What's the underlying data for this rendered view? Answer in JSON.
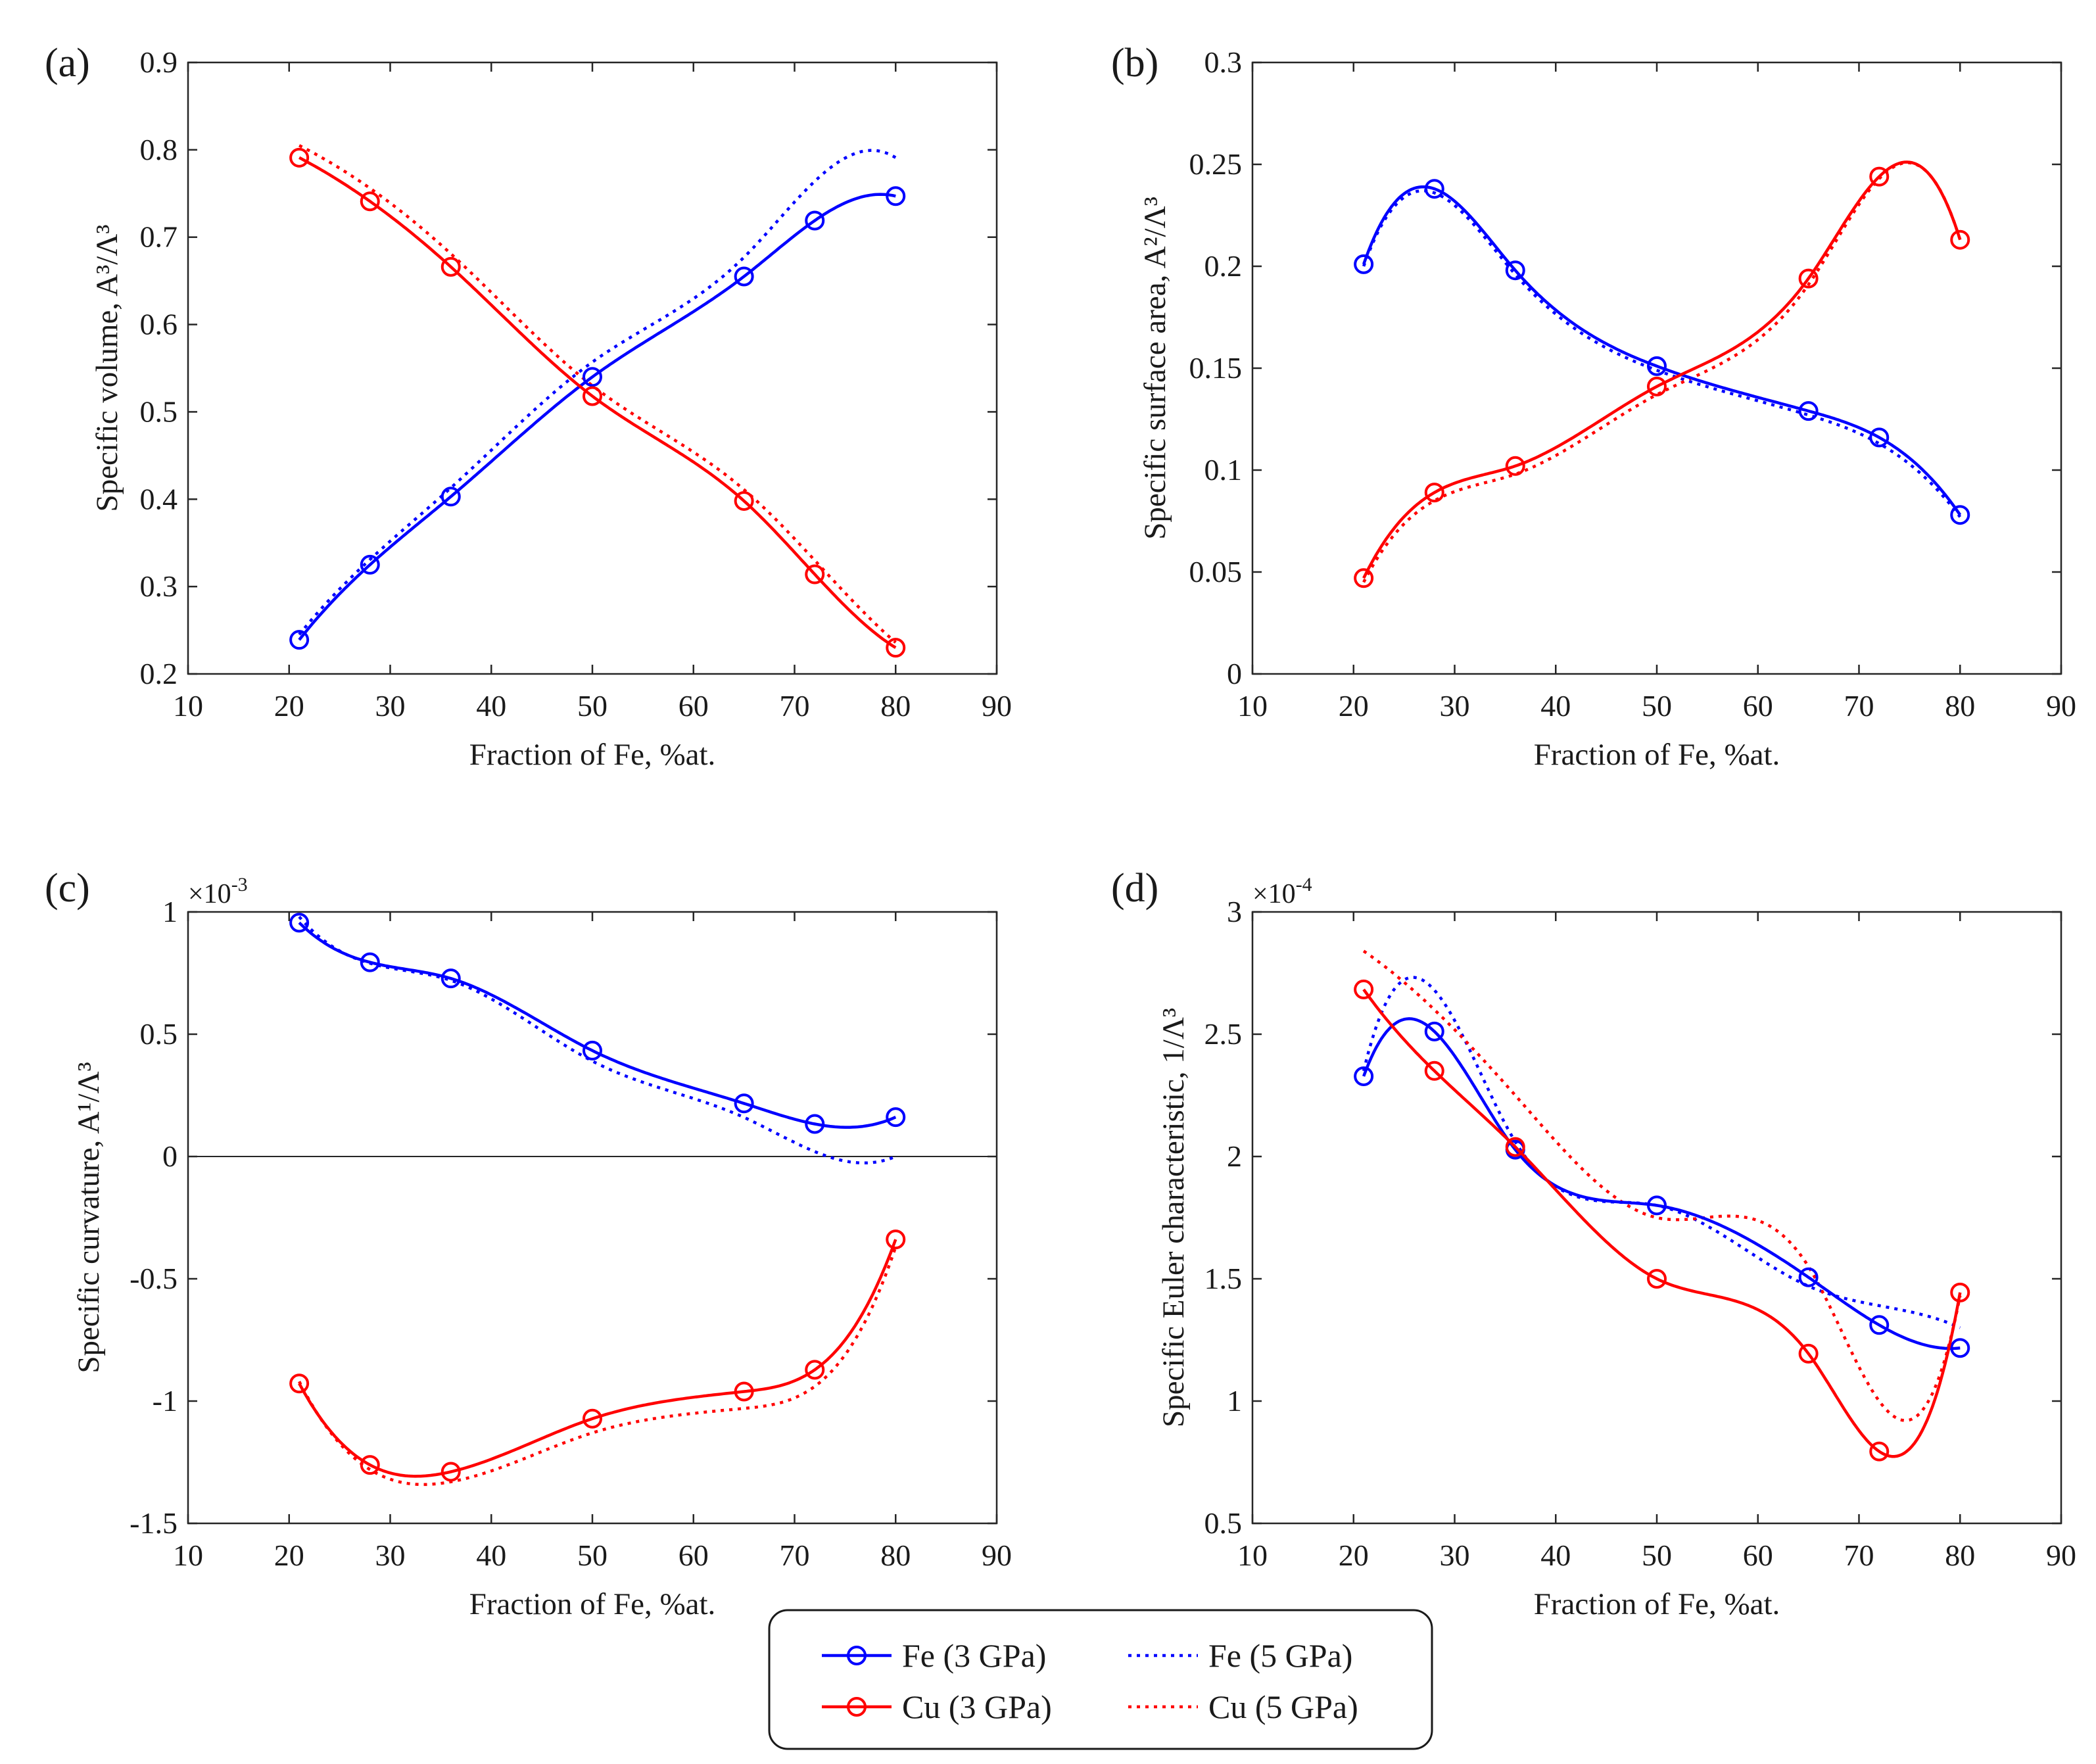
{
  "chart_data": [
    {
      "type": "line",
      "panel_label": "(a)",
      "xlabel": "Fraction of Fe, %at.",
      "ylabel": "Specific volume, A³/Λ³",
      "xlim": [
        10,
        90
      ],
      "ylim": [
        0.2,
        0.9
      ],
      "xticks": [
        10,
        20,
        30,
        40,
        50,
        60,
        70,
        80,
        90
      ],
      "xtick_labels": [
        "10",
        "20",
        "30",
        "40",
        "50",
        "60",
        "70",
        "80",
        "90"
      ],
      "yticks": [
        0.2,
        0.3,
        0.4,
        0.5,
        0.6,
        0.7,
        0.8,
        0.9
      ],
      "ytick_labels": [
        "0.2",
        "0.3",
        "0.4",
        "0.5",
        "0.6",
        "0.7",
        "0.8",
        "0.9"
      ],
      "grid": false,
      "zero_line": false,
      "series": [
        {
          "entry": 0,
          "x": [
            21,
            28,
            36,
            50,
            65,
            72,
            80
          ],
          "y": [
            0.239,
            0.325,
            0.403,
            0.54,
            0.655,
            0.719,
            0.747
          ]
        },
        {
          "entry": 1,
          "x": [
            21,
            28,
            36,
            50,
            65,
            72,
            80
          ],
          "y": [
            0.245,
            0.331,
            0.413,
            0.557,
            0.677,
            0.764,
            0.791
          ]
        },
        {
          "entry": 2,
          "x": [
            21,
            28,
            36,
            50,
            65,
            72,
            80
          ],
          "y": [
            0.791,
            0.741,
            0.666,
            0.518,
            0.398,
            0.314,
            0.23
          ]
        },
        {
          "entry": 3,
          "x": [
            21,
            28,
            36,
            50,
            65,
            72,
            80
          ],
          "y": [
            0.805,
            0.756,
            0.681,
            0.53,
            0.411,
            0.33,
            0.236
          ]
        }
      ]
    },
    {
      "type": "line",
      "panel_label": "(b)",
      "xlabel": "Fraction of Fe, %at.",
      "ylabel": "Specific surface area, A²/Λ³",
      "xlim": [
        10,
        90
      ],
      "ylim": [
        0,
        0.3
      ],
      "xticks": [
        10,
        20,
        30,
        40,
        50,
        60,
        70,
        80,
        90
      ],
      "xtick_labels": [
        "10",
        "20",
        "30",
        "40",
        "50",
        "60",
        "70",
        "80",
        "90"
      ],
      "yticks": [
        0,
        0.05,
        0.1,
        0.15,
        0.2,
        0.25,
        0.3
      ],
      "ytick_labels": [
        "0",
        "0.05",
        "0.1",
        "0.15",
        "0.2",
        "0.25",
        "0.3"
      ],
      "grid": false,
      "zero_line": false,
      "series": [
        {
          "entry": 0,
          "x": [
            21,
            28,
            36,
            50,
            65,
            72,
            80
          ],
          "y": [
            0.201,
            0.238,
            0.198,
            0.151,
            0.129,
            0.116,
            0.078
          ]
        },
        {
          "entry": 1,
          "x": [
            21,
            28,
            36,
            50,
            65,
            72,
            80
          ],
          "y": [
            0.2,
            0.236,
            0.196,
            0.149,
            0.127,
            0.113,
            0.077
          ]
        },
        {
          "entry": 2,
          "x": [
            21,
            28,
            36,
            50,
            65,
            72,
            80
          ],
          "y": [
            0.047,
            0.089,
            0.102,
            0.141,
            0.194,
            0.244,
            0.213
          ]
        },
        {
          "entry": 3,
          "x": [
            21,
            28,
            36,
            50,
            65,
            72,
            80
          ],
          "y": [
            0.045,
            0.085,
            0.098,
            0.137,
            0.191,
            0.243,
            0.213
          ]
        }
      ]
    },
    {
      "type": "line",
      "panel_label": "(c)",
      "xlabel": "Fraction of Fe, %at.",
      "ylabel": "Specific curvature, A¹/Λ³",
      "y_multiplier": {
        "base": "×10",
        "exponent": "-3"
      },
      "xlim": [
        10,
        90
      ],
      "ylim": [
        -1.5,
        1
      ],
      "xticks": [
        10,
        20,
        30,
        40,
        50,
        60,
        70,
        80,
        90
      ],
      "xtick_labels": [
        "10",
        "20",
        "30",
        "40",
        "50",
        "60",
        "70",
        "80",
        "90"
      ],
      "yticks": [
        -1.5,
        -1,
        -0.5,
        0,
        0.5,
        1
      ],
      "ytick_labels": [
        "-1.5",
        "-1",
        "-0.5",
        "0",
        "0.5",
        "1"
      ],
      "grid": false,
      "zero_line": true,
      "series": [
        {
          "entry": 0,
          "x": [
            21,
            28,
            36,
            50,
            65,
            72,
            80
          ],
          "y": [
            0.956,
            0.794,
            0.728,
            0.433,
            0.217,
            0.133,
            0.161
          ]
        },
        {
          "entry": 1,
          "x": [
            21,
            28,
            36,
            50,
            65,
            72,
            80
          ],
          "y": [
            0.98,
            0.79,
            0.72,
            0.39,
            0.16,
            0.02,
            0.0
          ]
        },
        {
          "entry": 2,
          "x": [
            21,
            28,
            36,
            50,
            65,
            72,
            80
          ],
          "y": [
            -0.928,
            -1.261,
            -1.289,
            -1.072,
            -0.961,
            -0.872,
            -0.339
          ]
        },
        {
          "entry": 3,
          "x": [
            21,
            28,
            36,
            50,
            65,
            72,
            80
          ],
          "y": [
            -0.92,
            -1.28,
            -1.33,
            -1.13,
            -1.03,
            -0.94,
            -0.37
          ]
        }
      ]
    },
    {
      "type": "line",
      "panel_label": "(d)",
      "xlabel": "Fraction of Fe, %at.",
      "ylabel": "Specific Euler characteristic, 1/Λ³",
      "y_multiplier": {
        "base": "×10",
        "exponent": "-4"
      },
      "xlim": [
        10,
        90
      ],
      "ylim": [
        0.5,
        3
      ],
      "xticks": [
        10,
        20,
        30,
        40,
        50,
        60,
        70,
        80,
        90
      ],
      "xtick_labels": [
        "10",
        "20",
        "30",
        "40",
        "50",
        "60",
        "70",
        "80",
        "90"
      ],
      "yticks": [
        0.5,
        1,
        1.5,
        2,
        2.5,
        3
      ],
      "ytick_labels": [
        "0.5",
        "1",
        "1.5",
        "2",
        "2.5",
        "3"
      ],
      "grid": false,
      "zero_line": false,
      "series": [
        {
          "entry": 0,
          "x": [
            21,
            28,
            36,
            50,
            65,
            72,
            80
          ],
          "y": [
            2.328,
            2.511,
            2.028,
            1.8,
            1.506,
            1.311,
            1.217
          ]
        },
        {
          "entry": 1,
          "x": [
            21,
            28,
            36,
            50,
            65,
            72,
            80
          ],
          "y": [
            2.35,
            2.68,
            2.06,
            1.8,
            1.47,
            1.39,
            1.3
          ]
        },
        {
          "entry": 2,
          "x": [
            21,
            28,
            36,
            50,
            65,
            72,
            80
          ],
          "y": [
            2.683,
            2.35,
            2.039,
            1.5,
            1.194,
            0.794,
            1.444
          ]
        },
        {
          "entry": 3,
          "x": [
            21,
            28,
            36,
            50,
            65,
            72,
            80
          ],
          "y": [
            2.84,
            2.6,
            2.25,
            1.75,
            1.55,
            1.0,
            1.43
          ]
        }
      ]
    }
  ],
  "legend": {
    "position": "bottom-center",
    "columns": 2,
    "entries": [
      {
        "label": "Fe (3 GPa)",
        "color": "#0000ff",
        "line_style": "solid",
        "marker": "circle"
      },
      {
        "label": "Fe (5 GPa)",
        "color": "#0000ff",
        "line_style": "dotted",
        "marker": "none"
      },
      {
        "label": "Cu (3 GPa)",
        "color": "#ff0000",
        "line_style": "solid",
        "marker": "circle"
      },
      {
        "label": "Cu (5 GPa)",
        "color": "#ff0000",
        "line_style": "dotted",
        "marker": "none"
      }
    ]
  }
}
